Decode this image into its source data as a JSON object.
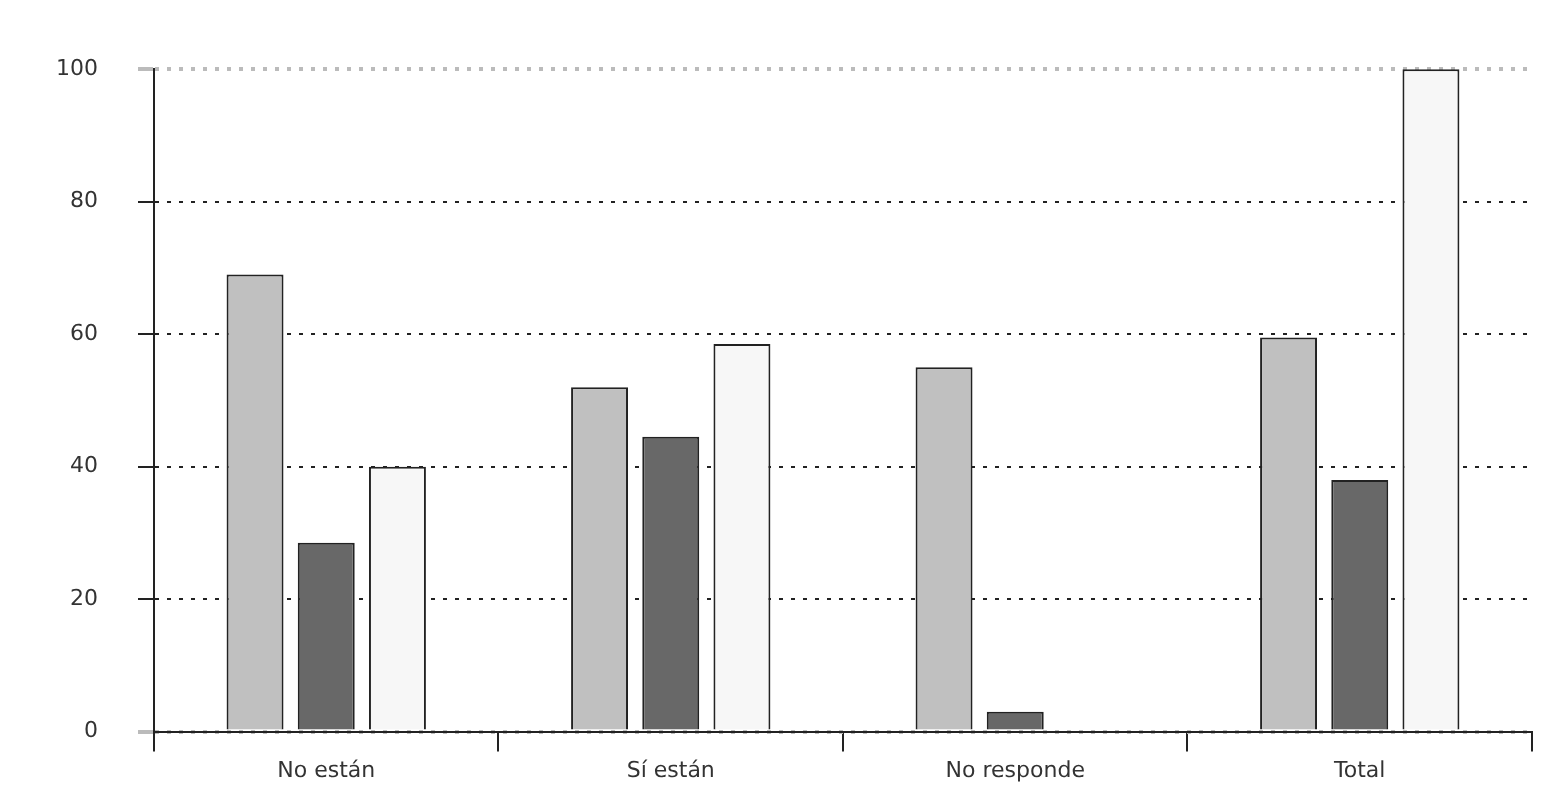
{
  "chart_data": {
    "type": "bar",
    "categories": [
      "No están",
      "Sí están",
      "No responde",
      "Total"
    ],
    "series": [
      {
        "color": "#c0c0c0",
        "values": [
          69,
          52,
          55,
          59.5
        ]
      },
      {
        "color": "#686868",
        "values": [
          28.5,
          44.5,
          3,
          38
        ]
      },
      {
        "color": "#f7f7f7",
        "values": [
          40,
          58.5,
          0.3,
          100
        ]
      }
    ],
    "ylim": [
      0,
      100
    ],
    "yticks": [
      0,
      20,
      40,
      60,
      80,
      100
    ],
    "grid": "y",
    "legend": false
  }
}
